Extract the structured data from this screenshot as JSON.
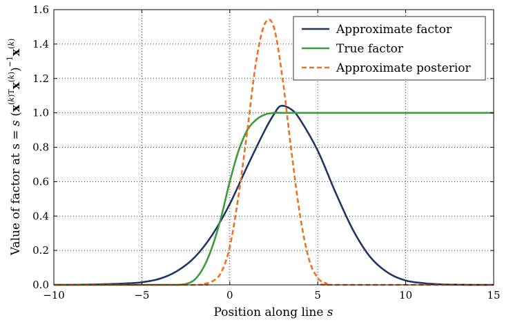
{
  "chart_data": {
    "type": "line",
    "xlabel": "Position along line s",
    "ylabel": "Value of factor at s = s (x^(k)T x^(k))^-1 x^(k)",
    "xlim": [
      -10,
      15
    ],
    "ylim": [
      0,
      1.6
    ],
    "xticks": [
      -10,
      -5,
      0,
      5,
      10,
      15
    ],
    "xtick_labels": [
      "−10",
      "−5",
      "0",
      "5",
      "10",
      "15"
    ],
    "yticks": [
      0.0,
      0.2,
      0.4,
      0.6,
      0.8,
      1.0,
      1.2,
      1.4,
      1.6
    ],
    "ytick_labels": [
      "0.0",
      "0.2",
      "0.4",
      "0.6",
      "0.8",
      "1.0",
      "1.2",
      "1.4",
      "1.6"
    ],
    "grid": true,
    "legend_position": "top-right",
    "series": [
      {
        "name": "Approximate factor",
        "color": "#1f3566",
        "style": "solid",
        "x": [
          -10,
          -8,
          -6,
          -5,
          -4,
          -3,
          -2,
          -1,
          0,
          1,
          2,
          2.5,
          2.9,
          3.5,
          4,
          5,
          6,
          7,
          8,
          9,
          10,
          11,
          12,
          13,
          14,
          15
        ],
        "y": [
          0.0,
          0.002,
          0.008,
          0.015,
          0.035,
          0.08,
          0.16,
          0.29,
          0.47,
          0.69,
          0.9,
          0.99,
          1.04,
          1.02,
          0.96,
          0.78,
          0.54,
          0.32,
          0.16,
          0.07,
          0.025,
          0.01,
          0.003,
          0.001,
          0.0,
          0.0
        ]
      },
      {
        "name": "True factor",
        "color": "#3b9a3a",
        "style": "solid",
        "x": [
          -10,
          -4,
          -3,
          -2.5,
          -2,
          -1.5,
          -1,
          -0.5,
          0,
          0.5,
          1,
          1.5,
          2,
          2.5,
          3,
          4,
          6,
          10,
          15
        ],
        "y": [
          0.0,
          0.0,
          0.0,
          0.005,
          0.03,
          0.1,
          0.22,
          0.39,
          0.6,
          0.78,
          0.9,
          0.96,
          0.99,
          1.0,
          1.0,
          1.0,
          1.0,
          1.0,
          1.0
        ]
      },
      {
        "name": "Approximate posterior",
        "color": "#f07020",
        "style": "dashed",
        "x": [
          -10,
          -2,
          -1.5,
          -1,
          -0.5,
          0,
          0.5,
          1,
          1.5,
          2,
          2.5,
          3,
          3.5,
          4,
          4.5,
          5,
          5.5,
          6,
          15
        ],
        "y": [
          0.0,
          0.0,
          0.005,
          0.02,
          0.07,
          0.22,
          0.52,
          0.9,
          1.3,
          1.52,
          1.5,
          1.2,
          0.78,
          0.4,
          0.15,
          0.04,
          0.008,
          0.0,
          0.0
        ]
      }
    ]
  }
}
